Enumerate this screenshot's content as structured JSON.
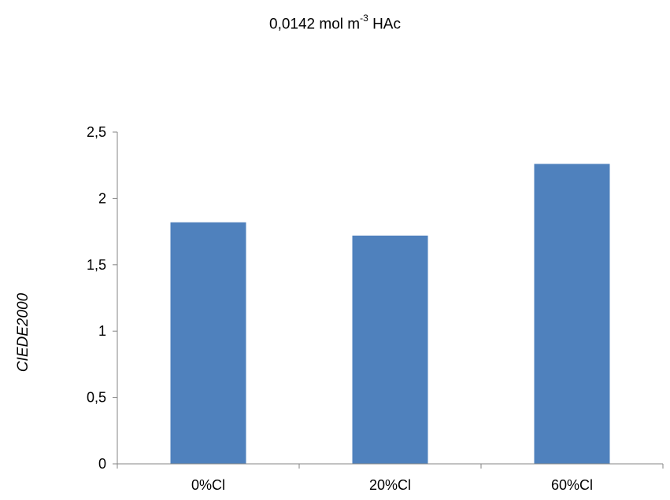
{
  "chart_data": {
    "type": "bar",
    "title": {
      "main": "0,0142 mol m",
      "superscript": "-3",
      "suffix": " HAc"
    },
    "ylabel": "CIEDE2000",
    "xlabel": "",
    "categories": [
      "0%Cl",
      "20%Cl",
      "60%Cl"
    ],
    "values": [
      1.82,
      1.72,
      2.26
    ],
    "ylim": [
      0,
      2.5
    ],
    "yticks": [
      0,
      0.5,
      1,
      1.5,
      2,
      2.5
    ],
    "ytick_labels": [
      "0",
      "0,5",
      "1",
      "1,5",
      "2",
      "2,5"
    ],
    "bar_color": "#4f81bd",
    "axis_color": "#868686",
    "grid": false,
    "legend": "none"
  }
}
